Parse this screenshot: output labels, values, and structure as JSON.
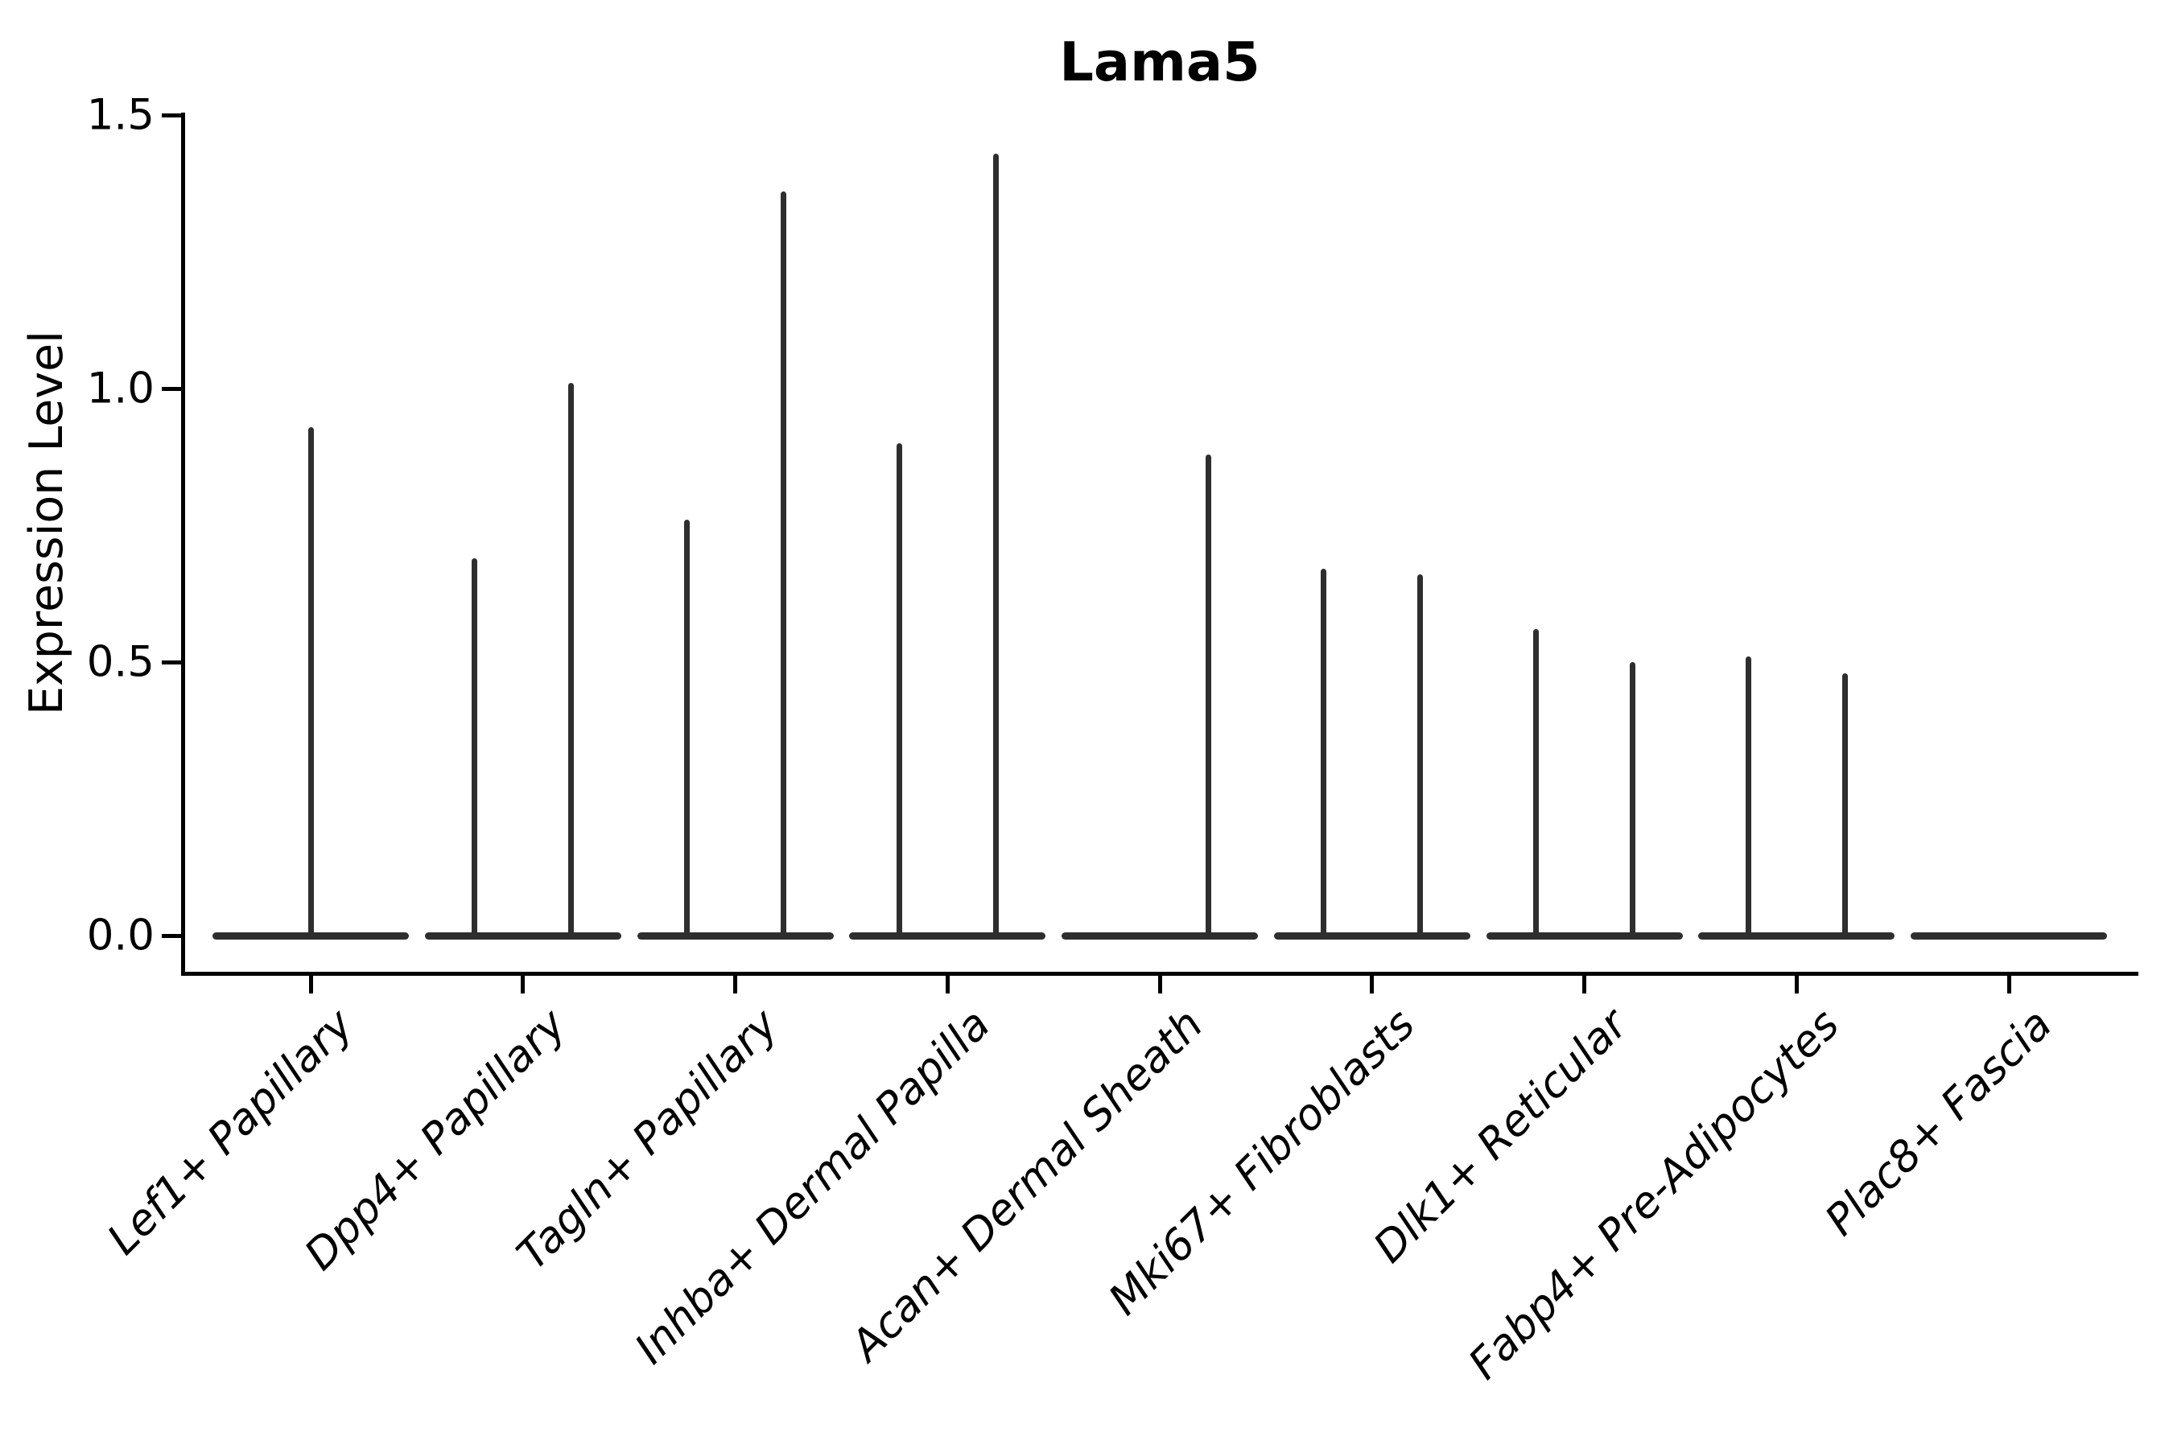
{
  "figure": {
    "title": "Lama5",
    "background_color": "#ffffff",
    "axis_color": "#000000",
    "violin_color": "#2e2e2e"
  },
  "chart_data": {
    "type": "violin",
    "title": "Lama5",
    "xlabel": "",
    "ylabel": "Expression Level",
    "ylim": [
      -0.07,
      1.57
    ],
    "yticks": [
      {
        "value": 0.0,
        "label": "0.0"
      },
      {
        "value": 0.5,
        "label": "0.5"
      },
      {
        "value": 1.0,
        "label": "1.0"
      },
      {
        "value": 1.5,
        "label": "1.5"
      }
    ],
    "grid": false,
    "legend": "none",
    "categories": [
      "Lef1+ Papillary",
      "Dpp4+ Papillary",
      "Tagln+ Papillary",
      "Inhba+ Dermal Papilla",
      "Acan+ Dermal Sheath",
      "Mki67+ Fibroblasts",
      "Dlk1+ Reticular",
      "Fabp4+ Pre-Adipocytes",
      "Plac8+ Fascia"
    ],
    "violins": [
      {
        "category": "Lef1+ Papillary",
        "groups": [
          {
            "position": "center",
            "max_expression": 0.93
          }
        ]
      },
      {
        "category": "Dpp4+ Papillary",
        "groups": [
          {
            "position": "left",
            "max_expression": 0.69
          },
          {
            "position": "right",
            "max_expression": 1.01
          }
        ]
      },
      {
        "category": "Tagln+ Papillary",
        "groups": [
          {
            "position": "left",
            "max_expression": 0.76
          },
          {
            "position": "right",
            "max_expression": 1.36
          }
        ]
      },
      {
        "category": "Inhba+ Dermal Papilla",
        "groups": [
          {
            "position": "left",
            "max_expression": 0.9
          },
          {
            "position": "right",
            "max_expression": 1.43
          }
        ]
      },
      {
        "category": "Acan+ Dermal Sheath",
        "groups": [
          {
            "position": "left",
            "max_expression": 0.0
          },
          {
            "position": "right",
            "max_expression": 0.88
          }
        ]
      },
      {
        "category": "Mki67+ Fibroblasts",
        "groups": [
          {
            "position": "left",
            "max_expression": 0.67
          },
          {
            "position": "right",
            "max_expression": 0.66
          }
        ]
      },
      {
        "category": "Dlk1+ Reticular",
        "groups": [
          {
            "position": "left",
            "max_expression": 0.56
          },
          {
            "position": "right",
            "max_expression": 0.5
          }
        ]
      },
      {
        "category": "Fabp4+ Pre-Adipocytes",
        "groups": [
          {
            "position": "left",
            "max_expression": 0.51
          },
          {
            "position": "right",
            "max_expression": 0.48
          }
        ]
      },
      {
        "category": "Plac8+ Fascia",
        "groups": [
          {
            "position": "left",
            "max_expression": 0.0
          },
          {
            "position": "right",
            "max_expression": 0.0
          }
        ]
      }
    ]
  }
}
